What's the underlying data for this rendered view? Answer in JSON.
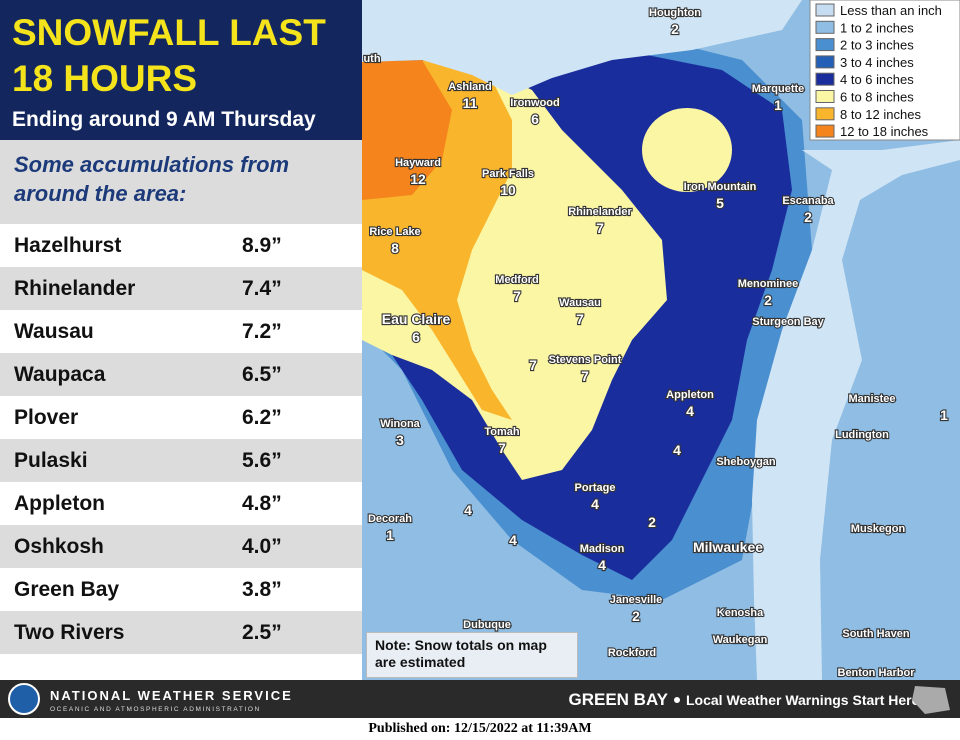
{
  "header": {
    "title_lines": [
      "SNOWFALL LAST",
      "18 HOURS"
    ],
    "subtitle": "Ending around 9 AM Thursday"
  },
  "panel": {
    "intro": "Some accumulations from around the area:",
    "rows": [
      [
        "Hazelhurst",
        "8.9”"
      ],
      [
        "Rhinelander",
        "7.4”"
      ],
      [
        "Wausau",
        "7.2”"
      ],
      [
        "Waupaca",
        "6.5”"
      ],
      [
        "Plover",
        "6.2”"
      ],
      [
        "Pulaski",
        "5.6”"
      ],
      [
        "Appleton",
        "4.8”"
      ],
      [
        "Oshkosh",
        "4.0”"
      ],
      [
        "Green Bay",
        "3.8”"
      ],
      [
        "Two Rivers",
        "2.5”"
      ]
    ]
  },
  "legend": {
    "items": [
      {
        "label": "Less than an inch",
        "color": "#c6dcf0"
      },
      {
        "label": "1 to 2 inches",
        "color": "#8fbde3"
      },
      {
        "label": "2 to 3 inches",
        "color": "#4a8fd0"
      },
      {
        "label": "3 to 4 inches",
        "color": "#2460b5"
      },
      {
        "label": "4 to 6 inches",
        "color": "#1a2d9c"
      },
      {
        "label": "6 to 8 inches",
        "color": "#fbf6a4"
      },
      {
        "label": "8 to 12 inches",
        "color": "#f9b52b"
      },
      {
        "label": "12 to 18 inches",
        "color": "#f5841c"
      }
    ]
  },
  "map": {
    "places": [
      {
        "name": "Houghton",
        "total": 2
      },
      {
        "name": "Marquette",
        "total": 1
      },
      {
        "name": "uth"
      },
      {
        "name": "Ashland",
        "total": 11
      },
      {
        "name": "Ironwood",
        "total": 6
      },
      {
        "name": "Hayward",
        "total": 12
      },
      {
        "name": "Park Falls",
        "total": 10
      },
      {
        "name": "Rhinelander",
        "total": 7
      },
      {
        "name": "Iron Mountain",
        "total": 5
      },
      {
        "name": "Escanaba",
        "total": 2
      },
      {
        "name": "Rice Lake",
        "total": 8
      },
      {
        "name": "Medford",
        "total": 7
      },
      {
        "name": "Wausau",
        "total": 7
      },
      {
        "name": "Menominee",
        "total": 2
      },
      {
        "name": "Sturgeon Bay"
      },
      {
        "name": "Eau Claire",
        "total": 6
      },
      {
        "name": "Stevens Point",
        "total": 7
      },
      {
        "name": "Appleton",
        "total": 4
      },
      {
        "name": "Manistee"
      },
      {
        "name": "Winona",
        "total": 3
      },
      {
        "name": "Ludington"
      },
      {
        "name": "Tomah",
        "total": 7
      },
      {
        "name": "Sheboygan"
      },
      {
        "name": "Decorah",
        "total": 1
      },
      {
        "name": "Portage",
        "total": 4
      },
      {
        "name": "Madison",
        "total": 4
      },
      {
        "name": "Milwaukee"
      },
      {
        "name": "Muskegon"
      },
      {
        "name": "Janesville",
        "total": 2
      },
      {
        "name": "Kenosha"
      },
      {
        "name": "Dubuque"
      },
      {
        "name": "Waukegan"
      },
      {
        "name": "Rockford"
      },
      {
        "name": "South Haven"
      },
      {
        "name": "Benton Harbor"
      }
    ],
    "totals": [
      7,
      4,
      4,
      2,
      1,
      4
    ],
    "note": "Note:  Snow totals on map are estimated"
  },
  "footer": {
    "agency": "NATIONAL WEATHER SERVICE",
    "agency_sub": "OCEANIC AND ATMOSPHERIC ADMINISTRATION",
    "office": "GREEN BAY",
    "tagline": "Local Weather Warnings Start Here",
    "published": "Published on: 12/15/2022 at 11:39AM"
  }
}
